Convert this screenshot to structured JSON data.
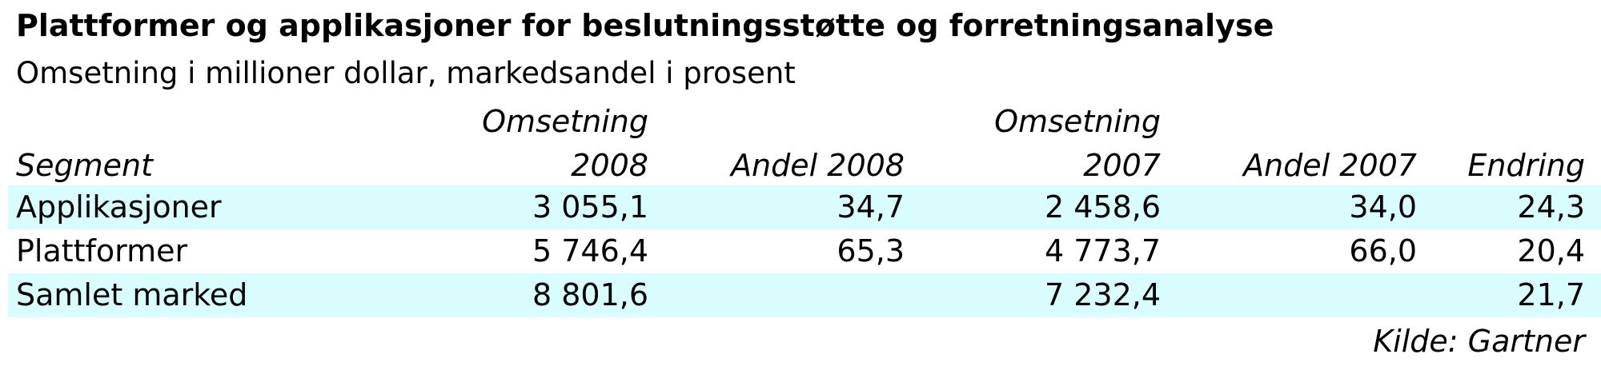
{
  "chart_data": {
    "type": "table",
    "title": "Plattformer og applikasjoner for beslutningsstøtte og forretningsanalyse",
    "subtitle": "Omsetning i millioner dollar, markedsandel i prosent",
    "header_top": [
      "",
      "Omsetning",
      "",
      "Omsetning",
      "",
      ""
    ],
    "columns": [
      "Segment",
      "2008",
      "Andel 2008",
      "2007",
      "Andel 2007",
      "Endring"
    ],
    "rows": [
      [
        "Applikasjoner",
        "3 055,1",
        "34,7",
        "2 458,6",
        "34,0",
        "24,3"
      ],
      [
        "Plattformer",
        "5 746,4",
        "65,3",
        "4 773,7",
        "66,0",
        "20,4"
      ],
      [
        "Samlet marked",
        "8 801,6",
        "",
        "7 232,4",
        "",
        "21,7"
      ]
    ],
    "source": "Kilde: Gartner"
  },
  "colors": {
    "band_row": "#d9fdfd",
    "text": "#000000"
  }
}
